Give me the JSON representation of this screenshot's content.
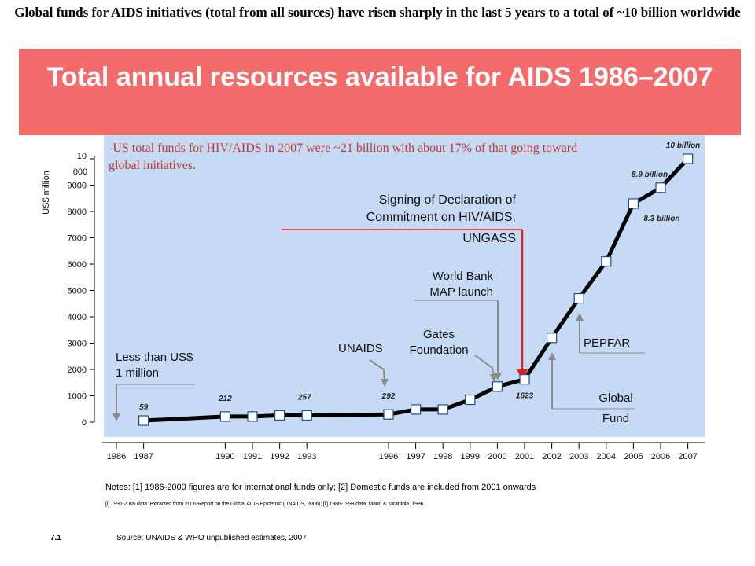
{
  "headline": "Global funds for AIDS initiatives (total from all sources) have risen sharply in the last 5 years to a total of ~10 billion worldwide",
  "colors": {
    "banner": "#f36b6b",
    "plot_bg": "#c6daf6",
    "annotation_red": "#c0392b",
    "arrow_red": "#e0201e"
  },
  "chart_data": {
    "type": "line",
    "title": "Total annual resources available for AIDS 1986–2007",
    "ylabel": "US$ million",
    "ylim": [
      0,
      10000
    ],
    "yticks": [
      "0",
      "1000",
      "2000",
      "3000",
      "4000",
      "5000",
      "6000",
      "7000",
      "8000",
      "9000",
      "10 000"
    ],
    "xticks": [
      "1986",
      "1987",
      "1990",
      "1991",
      "1992",
      "1993",
      "1996",
      "1997",
      "1998",
      "1999",
      "2000",
      "2001",
      "2002",
      "2003",
      "2004",
      "2005",
      "2006",
      "2007"
    ],
    "x": [
      1987,
      1990,
      1991,
      1992,
      1993,
      1996,
      1997,
      1998,
      1999,
      2000,
      2001,
      2002,
      2003,
      2004,
      2005,
      2006,
      2007
    ],
    "y": [
      59,
      212,
      212,
      257,
      257,
      292,
      480,
      480,
      850,
      1350,
      1623,
      3200,
      4700,
      6100,
      8300,
      8900,
      10000
    ],
    "data_labels": [
      {
        "x": 1987,
        "text": "59"
      },
      {
        "x": 1990,
        "text": "212"
      },
      {
        "x": 1993,
        "text": "257"
      },
      {
        "x": 1996,
        "text": "292"
      },
      {
        "x": 2001,
        "text": "1623"
      },
      {
        "x": 2005,
        "text": "8.3 billion"
      },
      {
        "x": 2006,
        "text": "8.9 billion"
      },
      {
        "x": 2007,
        "text": "10 billion"
      }
    ],
    "grid": false,
    "annotations": {
      "us_funds": "-US total funds for HIV/AIDS in 2007 were ~21 billion with about 17% of that going toward global initiatives.",
      "less_than": "Less than US$ 1 million",
      "unaids": "UNAIDS",
      "gates": "Gates Foundation",
      "world_bank": "World Bank MAP launch",
      "declaration_line1": "Signing of Declaration of",
      "declaration_line2": "Commitment on HIV/AIDS,",
      "declaration_line3": "UNGASS",
      "pepfar": "PEPFAR",
      "global_fund_line1": "Global",
      "global_fund_line2": "Fund"
    }
  },
  "notes": {
    "note1": "Notes: [1] 1986-2000 figures are for international funds only; [2] Domestic funds are included from 2001 onwards",
    "note2": "[i] 1996-2005 data: Extracted from 2006 Report on the Global AIDS Epidemic (UNAIDS, 2006); [ii] 1986-1993 data: Mann & Tarantola, 1996",
    "page_number": "7.1",
    "source": "Source: UNAIDS & WHO unpublished estimates, 2007"
  }
}
